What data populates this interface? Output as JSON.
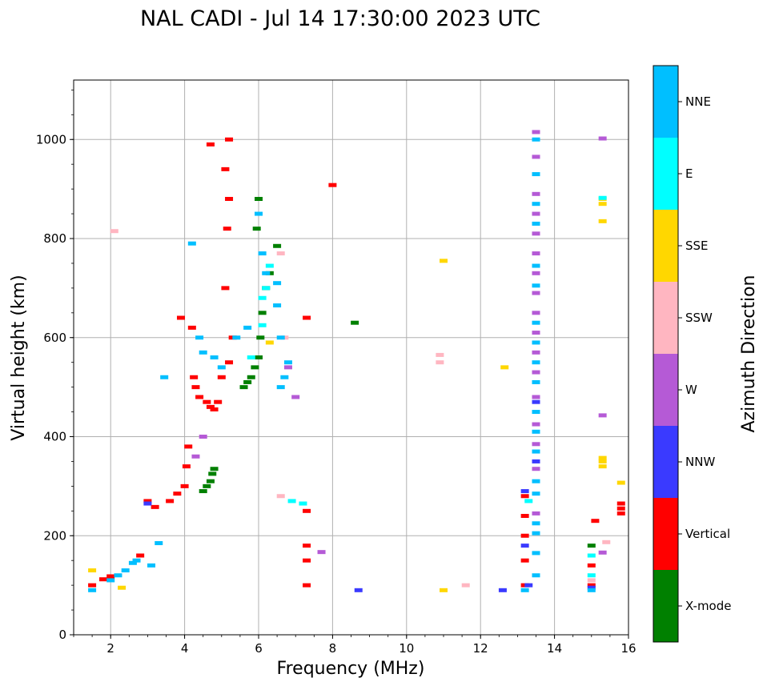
{
  "chart_data": {
    "type": "scatter",
    "title": "NAL CADI - Jul 14 17:30:00 2023 UTC",
    "xlabel": "Frequency (MHz)",
    "ylabel": "Virtual height (km)",
    "xlim": [
      1,
      16
    ],
    "ylim": [
      0,
      1120
    ],
    "xticks": [
      2,
      4,
      6,
      8,
      10,
      12,
      14,
      16
    ],
    "yticks": [
      0,
      200,
      400,
      600,
      800,
      1000
    ],
    "grid": true,
    "colorbar": {
      "label": "Azimuth Direction",
      "categories": [
        {
          "name": "X-mode",
          "color": "#008000"
        },
        {
          "name": "Vertical",
          "color": "#ff0000"
        },
        {
          "name": "NNW",
          "color": "#3a3aff"
        },
        {
          "name": "W",
          "color": "#b55ad6"
        },
        {
          "name": "SSW",
          "color": "#ffb6c1"
        },
        {
          "name": "SSE",
          "color": "#ffd700"
        },
        {
          "name": "E",
          "color": "#00ffff"
        },
        {
          "name": "NNE",
          "color": "#00bfff"
        }
      ]
    },
    "series": [
      {
        "name": "X-mode",
        "points": [
          [
            4.5,
            290
          ],
          [
            4.6,
            300
          ],
          [
            4.7,
            310
          ],
          [
            4.75,
            325
          ],
          [
            4.8,
            335
          ],
          [
            5.6,
            500
          ],
          [
            5.7,
            510
          ],
          [
            5.8,
            520
          ],
          [
            5.9,
            540
          ],
          [
            6.0,
            560
          ],
          [
            6.05,
            600
          ],
          [
            6.1,
            650
          ],
          [
            6.2,
            700
          ],
          [
            6.3,
            730
          ],
          [
            6.5,
            785
          ],
          [
            8.6,
            630
          ],
          [
            6.0,
            880
          ],
          [
            5.95,
            820
          ],
          [
            15.0,
            180
          ]
        ]
      },
      {
        "name": "Vertical",
        "points": [
          [
            1.5,
            100
          ],
          [
            1.8,
            112
          ],
          [
            2.0,
            118
          ],
          [
            2.8,
            160
          ],
          [
            3.0,
            270
          ],
          [
            3.2,
            258
          ],
          [
            3.6,
            270
          ],
          [
            3.8,
            285
          ],
          [
            4.0,
            300
          ],
          [
            4.05,
            340
          ],
          [
            4.1,
            380
          ],
          [
            4.25,
            520
          ],
          [
            4.3,
            500
          ],
          [
            4.4,
            480
          ],
          [
            4.6,
            470
          ],
          [
            4.7,
            460
          ],
          [
            4.8,
            455
          ],
          [
            4.9,
            470
          ],
          [
            5.0,
            520
          ],
          [
            5.2,
            550
          ],
          [
            5.3,
            600
          ],
          [
            5.1,
            700
          ],
          [
            5.15,
            820
          ],
          [
            5.2,
            880
          ],
          [
            5.1,
            940
          ],
          [
            5.2,
            1000
          ],
          [
            4.7,
            990
          ],
          [
            4.2,
            620
          ],
          [
            3.9,
            640
          ],
          [
            7.3,
            250
          ],
          [
            7.3,
            180
          ],
          [
            7.3,
            150
          ],
          [
            7.3,
            100
          ],
          [
            7.3,
            640
          ],
          [
            8.0,
            908
          ],
          [
            13.2,
            100
          ],
          [
            13.2,
            150
          ],
          [
            13.2,
            200
          ],
          [
            13.2,
            240
          ],
          [
            13.2,
            280
          ],
          [
            15.0,
            100
          ],
          [
            15.0,
            140
          ],
          [
            15.1,
            230
          ],
          [
            15.8,
            245
          ],
          [
            15.8,
            255
          ],
          [
            15.8,
            265
          ]
        ]
      },
      {
        "name": "NNW",
        "points": [
          [
            3.0,
            265
          ],
          [
            13.2,
            180
          ],
          [
            13.2,
            290
          ],
          [
            13.5,
            350
          ],
          [
            13.5,
            470
          ],
          [
            8.7,
            90
          ],
          [
            12.6,
            90
          ],
          [
            13.3,
            100
          ],
          [
            15.0,
            95
          ]
        ]
      },
      {
        "name": "W",
        "points": [
          [
            4.3,
            360
          ],
          [
            4.5,
            400
          ],
          [
            6.8,
            540
          ],
          [
            7.0,
            480
          ],
          [
            7.7,
            167
          ],
          [
            13.5,
            1015
          ],
          [
            13.5,
            965
          ],
          [
            13.5,
            890
          ],
          [
            13.5,
            850
          ],
          [
            13.5,
            810
          ],
          [
            13.5,
            770
          ],
          [
            13.5,
            730
          ],
          [
            13.5,
            690
          ],
          [
            13.5,
            650
          ],
          [
            13.5,
            610
          ],
          [
            13.5,
            570
          ],
          [
            13.5,
            530
          ],
          [
            13.5,
            480
          ],
          [
            13.5,
            425
          ],
          [
            13.5,
            385
          ],
          [
            13.5,
            335
          ],
          [
            13.5,
            245
          ],
          [
            15.3,
            1002
          ],
          [
            15.3,
            443
          ],
          [
            15.3,
            166
          ]
        ]
      },
      {
        "name": "SSW",
        "points": [
          [
            2.1,
            815
          ],
          [
            6.6,
            770
          ],
          [
            6.7,
            600
          ],
          [
            6.6,
            280
          ],
          [
            10.9,
            565
          ],
          [
            10.9,
            550
          ],
          [
            11.6,
            100
          ],
          [
            15.0,
            110
          ],
          [
            15.4,
            187
          ]
        ]
      },
      {
        "name": "SSE",
        "points": [
          [
            1.5,
            130
          ],
          [
            2.3,
            95
          ],
          [
            6.3,
            590
          ],
          [
            11.0,
            755
          ],
          [
            11.0,
            90
          ],
          [
            12.65,
            540
          ],
          [
            15.3,
            880
          ],
          [
            15.3,
            870
          ],
          [
            15.3,
            835
          ],
          [
            15.3,
            357
          ],
          [
            15.3,
            350
          ],
          [
            15.3,
            340
          ],
          [
            15.8,
            307
          ]
        ]
      },
      {
        "name": "E",
        "points": [
          [
            5.8,
            560
          ],
          [
            6.1,
            625
          ],
          [
            6.1,
            680
          ],
          [
            6.2,
            700
          ],
          [
            6.3,
            745
          ],
          [
            6.9,
            270
          ],
          [
            7.2,
            265
          ],
          [
            13.3,
            270
          ],
          [
            15.0,
            120
          ],
          [
            15.0,
            160
          ],
          [
            15.3,
            882
          ]
        ]
      },
      {
        "name": "NNE",
        "points": [
          [
            1.5,
            90
          ],
          [
            2.0,
            110
          ],
          [
            2.2,
            120
          ],
          [
            2.4,
            130
          ],
          [
            2.6,
            145
          ],
          [
            2.7,
            150
          ],
          [
            3.1,
            140
          ],
          [
            3.3,
            185
          ],
          [
            3.45,
            520
          ],
          [
            4.2,
            790
          ],
          [
            4.4,
            600
          ],
          [
            4.5,
            570
          ],
          [
            4.8,
            560
          ],
          [
            5.0,
            540
          ],
          [
            5.4,
            600
          ],
          [
            5.7,
            620
          ],
          [
            6.0,
            850
          ],
          [
            6.1,
            770
          ],
          [
            6.2,
            730
          ],
          [
            6.5,
            710
          ],
          [
            6.5,
            665
          ],
          [
            6.6,
            600
          ],
          [
            6.8,
            550
          ],
          [
            6.7,
            520
          ],
          [
            6.6,
            500
          ],
          [
            13.2,
            90
          ],
          [
            13.5,
            1000
          ],
          [
            13.5,
            930
          ],
          [
            13.5,
            870
          ],
          [
            13.5,
            830
          ],
          [
            13.5,
            745
          ],
          [
            13.5,
            705
          ],
          [
            13.5,
            630
          ],
          [
            13.5,
            590
          ],
          [
            13.5,
            550
          ],
          [
            13.5,
            510
          ],
          [
            13.5,
            450
          ],
          [
            13.5,
            410
          ],
          [
            13.5,
            370
          ],
          [
            13.5,
            310
          ],
          [
            13.5,
            285
          ],
          [
            13.5,
            225
          ],
          [
            13.5,
            205
          ],
          [
            13.5,
            165
          ],
          [
            13.5,
            120
          ],
          [
            15.0,
            90
          ]
        ]
      }
    ]
  }
}
